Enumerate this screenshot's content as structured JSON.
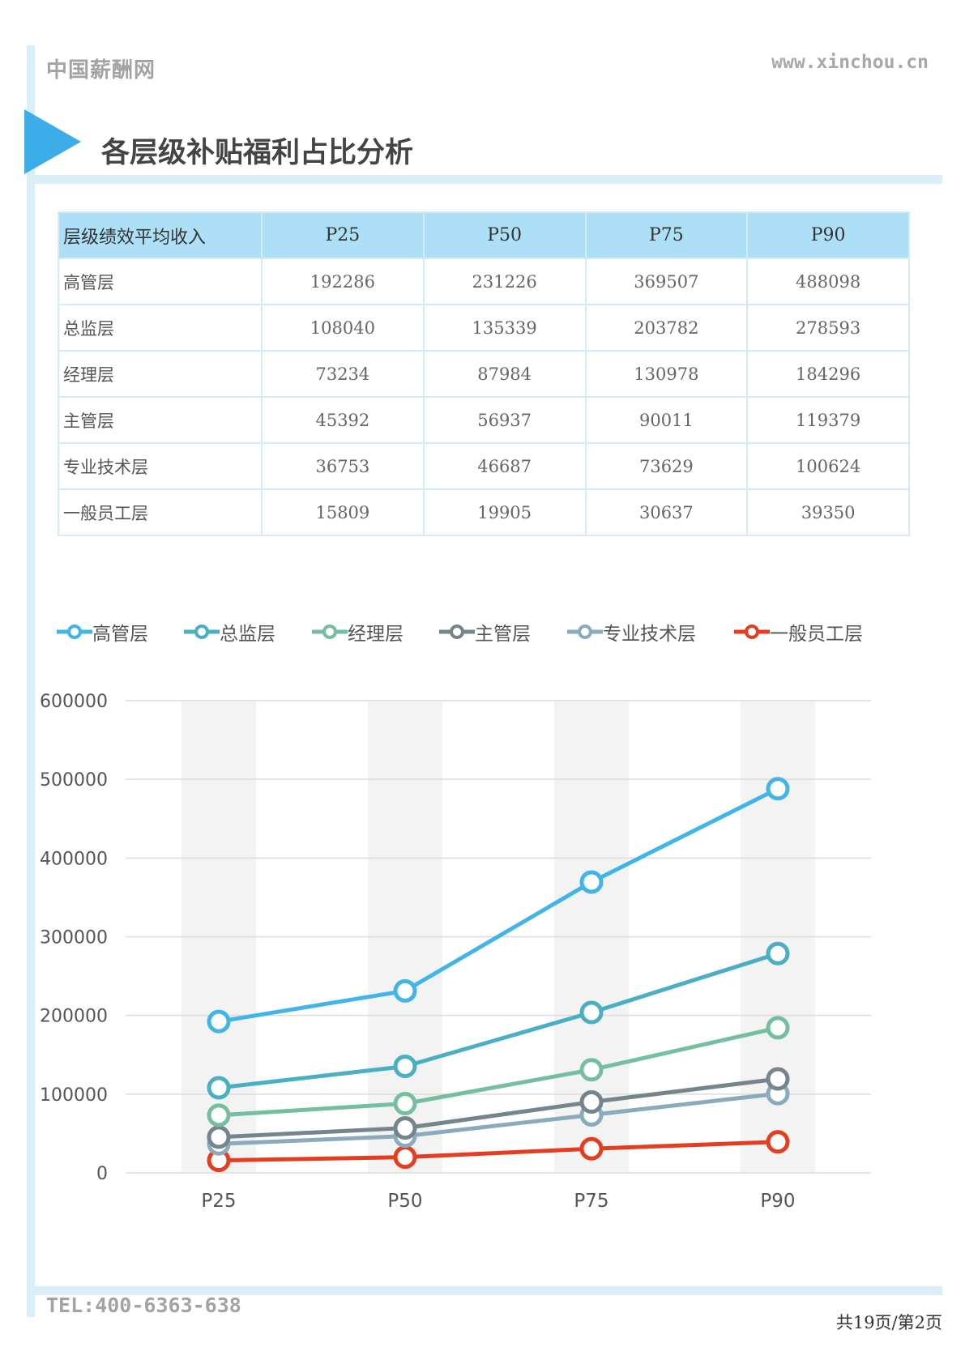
{
  "header": {
    "brand": "中国薪酬网",
    "site": "www.xinchou.cn"
  },
  "section": {
    "title": "各层级补贴福利占比分析"
  },
  "table": {
    "columns": [
      "层级绩效平均收入",
      "P25",
      "P50",
      "P75",
      "P90"
    ],
    "rows": [
      {
        "label": "高管层",
        "values": [
          "192286",
          "231226",
          "369507",
          "488098"
        ]
      },
      {
        "label": "总监层",
        "values": [
          "108040",
          "135339",
          "203782",
          "278593"
        ]
      },
      {
        "label": "经理层",
        "values": [
          "73234",
          "87984",
          "130978",
          "184296"
        ]
      },
      {
        "label": "主管层",
        "values": [
          "45392",
          "56937",
          "90011",
          "119379"
        ]
      },
      {
        "label": "专业技术层",
        "values": [
          "36753",
          "46687",
          "73629",
          "100624"
        ]
      },
      {
        "label": "一般员工层",
        "values": [
          "15809",
          "19905",
          "30637",
          "39350"
        ]
      }
    ]
  },
  "chart_data": {
    "type": "line",
    "categories": [
      "P25",
      "P50",
      "P75",
      "P90"
    ],
    "series": [
      {
        "name": "高管层",
        "color": "#41b5e8",
        "values": [
          192286,
          231226,
          369507,
          488098
        ]
      },
      {
        "name": "总监层",
        "color": "#4aafc3",
        "values": [
          108040,
          135339,
          203782,
          278593
        ]
      },
      {
        "name": "经理层",
        "color": "#76bea0",
        "values": [
          73234,
          87984,
          130978,
          184296
        ]
      },
      {
        "name": "主管层",
        "color": "#75858d",
        "values": [
          45392,
          56937,
          90011,
          119379
        ]
      },
      {
        "name": "专业技术层",
        "color": "#8aabbc",
        "values": [
          36753,
          46687,
          73629,
          100624
        ]
      },
      {
        "name": "一般员工层",
        "color": "#e43d1f",
        "values": [
          15809,
          19905,
          30637,
          39350
        ]
      }
    ],
    "ylim": [
      0,
      600000
    ],
    "yticks": [
      "0",
      "100000",
      "200000",
      "300000",
      "400000",
      "500000",
      "600000"
    ],
    "legend": "top",
    "grid": true
  },
  "footer": {
    "tel": "TEL:400-6363-638",
    "page": "共19页/第2页"
  }
}
